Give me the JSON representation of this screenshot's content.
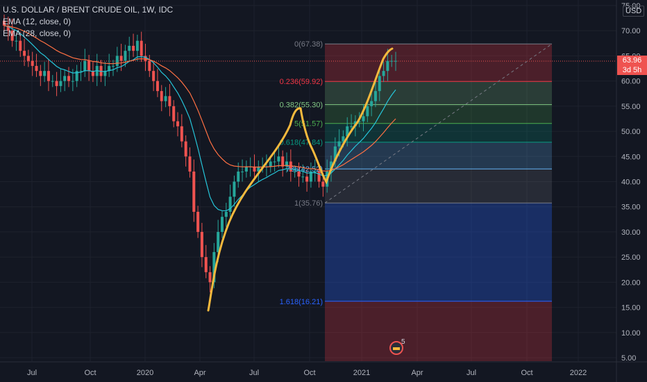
{
  "legend": {
    "title": "U.S. DOLLAR / BRENT CRUDE OIL, 1W, IDC",
    "ema_fast": "EMA (12, close, 0)",
    "ema_slow": "EMA (28, close, 0)"
  },
  "currency": "USD",
  "last_price": "63.96",
  "countdown": "3d 5h",
  "badge_count": "5",
  "colors": {
    "background": "#131722",
    "up": "#26a69a",
    "down": "#ef5350",
    "ema_fast": "#26c6da",
    "ema_slow": "#ff7043",
    "drawing": "#f5b93d"
  },
  "chart_data": {
    "type": "candlestick",
    "title": "U.S. DOLLAR / BRENT CRUDE OIL, 1W, IDC",
    "ylim": [
      5,
      75
    ],
    "y_ticks": [
      "75.00",
      "70.00",
      "65.00",
      "60.00",
      "55.00",
      "50.00",
      "45.00",
      "40.00",
      "35.00",
      "30.00",
      "25.00",
      "20.00",
      "15.00",
      "10.00",
      "5.00"
    ],
    "x_ticks": [
      "Jul",
      "Oct",
      "2020",
      "Apr",
      "Jul",
      "Oct",
      "2021",
      "Apr",
      "Jul",
      "Oct",
      "2022"
    ],
    "closes": [
      71,
      70,
      68,
      68,
      66,
      65,
      64,
      63,
      62,
      61,
      62,
      60,
      60,
      59,
      60,
      61,
      60,
      60,
      62,
      62,
      64,
      62,
      61,
      63,
      61,
      62,
      63,
      63,
      65,
      64,
      66,
      67,
      66,
      68,
      65,
      64,
      62,
      60,
      58,
      56,
      57,
      55,
      52,
      51,
      48,
      45,
      42,
      34,
      30,
      25,
      22,
      20,
      26,
      30,
      33,
      34,
      37,
      40,
      42,
      42,
      43,
      43,
      42,
      43,
      43,
      43,
      44,
      44,
      45,
      43,
      44,
      42,
      42,
      41,
      41,
      40,
      42,
      42,
      40,
      39,
      42,
      44,
      47,
      48,
      49,
      51,
      51,
      52,
      52,
      53,
      55,
      56,
      58,
      61,
      62,
      64,
      64,
      64
    ],
    "fibonacci": [
      {
        "level": "0(67.38)",
        "value": 67.38
      },
      {
        "level": "0.236(59.92)",
        "value": 59.92
      },
      {
        "level": "0.382(55.30)",
        "value": 55.3
      },
      {
        "level": "0.5(51.57)",
        "value": 51.57
      },
      {
        "level": "0.618(47.84)",
        "value": 47.84
      },
      {
        "level": "0.786(42.52)",
        "value": 42.52
      },
      {
        "level": "1(35.76)",
        "value": 35.76
      },
      {
        "level": "1.618(16.21)",
        "value": 16.21
      }
    ],
    "fib_labels_shown": [
      "0(67.38)",
      "0.236(59.92)",
      "0.382(55.30)",
      "5(51.57)",
      "0.618(47.84)",
      "786(42.52)",
      "1(35.76)",
      "1.618(16.21)"
    ],
    "series": [
      {
        "name": "EMA (12, close, 0)"
      },
      {
        "name": "EMA (28, close, 0)"
      }
    ]
  }
}
